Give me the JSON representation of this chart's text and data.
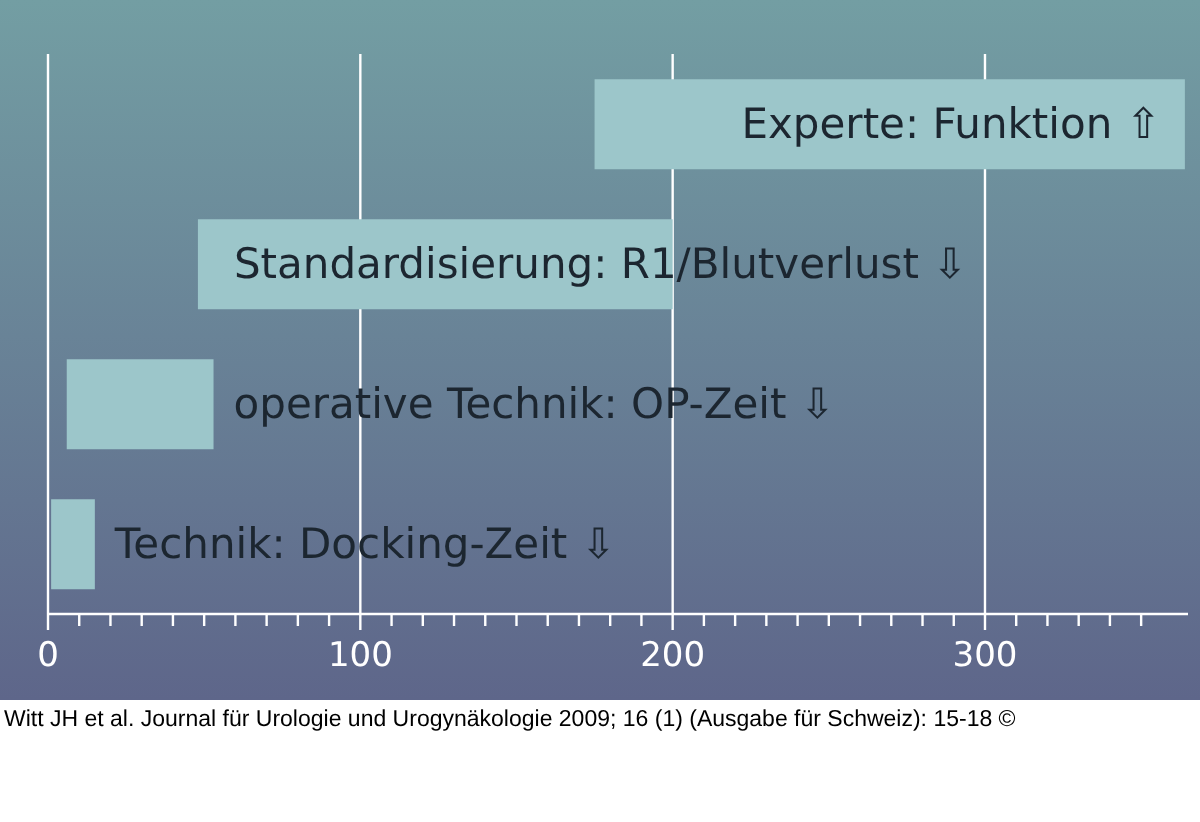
{
  "chart_data": {
    "type": "bar",
    "orientation": "horizontal",
    "categories": [
      "Experte: Funktion ⇧",
      "Standardisierung: R1/Blutverlust ⇩",
      "operative Technik: OP-Zeit ⇩",
      "Technik: Docking-Zeit ⇩"
    ],
    "base": [
      175,
      48,
      6,
      1
    ],
    "values": [
      189,
      152,
      47,
      14
    ],
    "color": "#9cc6ca",
    "xlim": [
      0,
      365
    ],
    "xticks": [
      0,
      {
        "value": 10,
        "label": null
      },
      {
        "value": 20,
        "label": null
      },
      {
        "value": 30,
        "label": null
      },
      {
        "value": 40,
        "label": null
      },
      {
        "value": 50,
        "label": null
      },
      {
        "value": 60,
        "label": null
      },
      {
        "value": 70,
        "label": null
      },
      {
        "value": 80,
        "label": null
      },
      {
        "value": 90,
        "label": null
      },
      100,
      {
        "value": 110,
        "label": null
      },
      {
        "value": 120,
        "label": null
      },
      {
        "value": 130,
        "label": null
      },
      {
        "value": 140,
        "label": null
      },
      {
        "value": 150,
        "label": null
      },
      {
        "value": 160,
        "label": null
      },
      {
        "value": 170,
        "label": null
      },
      {
        "value": 180,
        "label": null
      },
      {
        "value": 190,
        "label": null
      },
      200,
      {
        "value": 210,
        "label": null
      },
      {
        "value": 220,
        "label": null
      },
      {
        "value": 230,
        "label": null
      },
      {
        "value": 240,
        "label": null
      },
      {
        "value": 250,
        "label": null
      },
      {
        "value": 260,
        "label": null
      },
      {
        "value": 270,
        "label": null
      },
      {
        "value": 280,
        "label": null
      },
      {
        "value": 290,
        "label": null
      },
      300,
      {
        "value": 310,
        "label": null
      },
      {
        "value": 320,
        "label": null
      },
      {
        "value": 330,
        "label": null
      },
      {
        "value": 340,
        "label": null
      },
      {
        "value": 350,
        "label": null
      }
    ],
    "grid": "x",
    "tick_labels": "x",
    "annotations": [
      "Witt JH et al. Journal für Urologie und Urogynäkologie 2009; 16 (1) (Ausgabe für Schweiz): 15-18 ©"
    ]
  }
}
